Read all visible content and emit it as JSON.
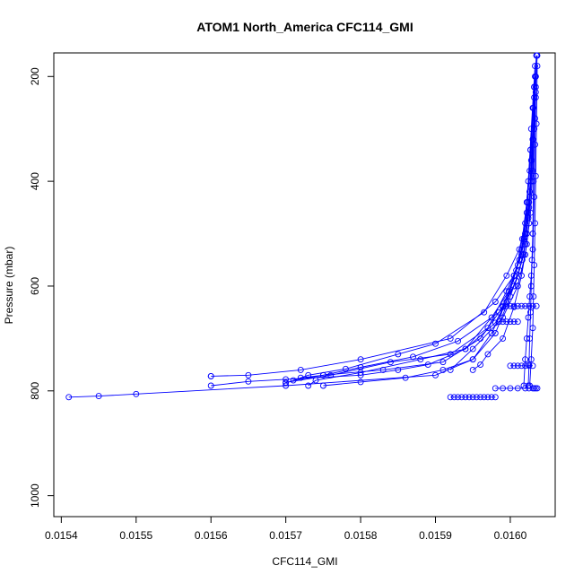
{
  "chart_data": {
    "type": "line",
    "title": "ATOM1 North_America CFC114_GMI",
    "xlabel": "CFC114_GMI",
    "ylabel": "Pressure (mbar)",
    "xlim": [
      0.01539,
      0.01606
    ],
    "ylim": [
      1040,
      155
    ],
    "y_reversed": true,
    "x_ticks": [
      0.0154,
      0.0155,
      0.0156,
      0.0157,
      0.0158,
      0.0159,
      0.016
    ],
    "x_tick_labels": [
      "0.0154",
      "0.0155",
      "0.0156",
      "0.0157",
      "0.0158",
      "0.0159",
      "0.0160"
    ],
    "y_ticks": [
      200,
      400,
      600,
      800,
      1000
    ],
    "y_tick_labels": [
      "200",
      "400",
      "600",
      "800",
      "1000"
    ],
    "grid": false,
    "legend": "none",
    "marker": "open-circle",
    "color": "#0000ff",
    "series": [
      {
        "x": [
          0.016035,
          0.01603,
          0.016028,
          0.016025,
          0.01602,
          0.016015,
          0.016005,
          0.01598,
          0.01592,
          0.0158,
          0.01572,
          0.01565,
          0.0156,
          0.0156
        ],
        "y": [
          160,
          260,
          360,
          440,
          500,
          540,
          580,
          630,
          700,
          740,
          760,
          770,
          772,
          772
        ]
      },
      {
        "x": [
          0.016033,
          0.016028,
          0.016024,
          0.01602,
          0.016012,
          0.015995,
          0.015965,
          0.0159,
          0.01585,
          0.01578,
          0.01573,
          0.0157
        ],
        "y": [
          180,
          300,
          400,
          480,
          530,
          580,
          650,
          710,
          730,
          758,
          770,
          785
        ]
      },
      {
        "x": [
          0.016034,
          0.01603,
          0.016026,
          0.016022,
          0.016016,
          0.016005,
          0.01598,
          0.01594,
          0.01588,
          0.0158,
          0.01574,
          0.01573
        ],
        "y": [
          200,
          320,
          420,
          500,
          550,
          600,
          670,
          720,
          740,
          765,
          780,
          790
        ]
      },
      {
        "x": [
          0.016032,
          0.016027,
          0.016023,
          0.016018,
          0.01601,
          0.015995,
          0.01597,
          0.01592,
          0.01584,
          0.01576,
          0.0157
        ],
        "y": [
          220,
          340,
          440,
          510,
          560,
          610,
          680,
          730,
          745,
          770,
          784
        ]
      },
      {
        "x": [
          0.016034,
          0.016029,
          0.016025,
          0.01602,
          0.016012,
          0.016,
          0.01598,
          0.01595,
          0.01591,
          0.01586,
          0.0158,
          0.01575
        ],
        "y": [
          240,
          360,
          450,
          520,
          570,
          620,
          690,
          740,
          760,
          775,
          783,
          790
        ]
      },
      {
        "x": [
          0.016031,
          0.016026,
          0.016022,
          0.016015,
          0.016005,
          0.01599,
          0.01596,
          0.01591,
          0.01583,
          0.01575,
          0.01572
        ],
        "y": [
          260,
          380,
          460,
          530,
          580,
          640,
          700,
          745,
          760,
          770,
          775
        ]
      },
      {
        "x": [
          0.016033,
          0.016028,
          0.016024,
          0.016018,
          0.016008,
          0.015985,
          0.01593,
          0.01587,
          0.0158,
          0.01575,
          0.01571
        ],
        "y": [
          280,
          400,
          470,
          540,
          590,
          650,
          705,
          735,
          755,
          770,
          780
        ]
      },
      {
        "x": [
          0.016034,
          0.01603,
          0.016026,
          0.01602,
          0.016012,
          0.015998,
          0.015975,
          0.01594,
          0.01589,
          0.01585,
          0.0158,
          0.0157,
          0.01565,
          0.0156
        ],
        "y": [
          200,
          320,
          420,
          500,
          550,
          610,
          660,
          720,
          750,
          760,
          770,
          778,
          782,
          790
        ]
      },
      {
        "x": [
          0.016032,
          0.016027,
          0.016022,
          0.016016,
          0.016008,
          0.015995,
          0.015975,
          0.01595,
          0.0159,
          0.0157,
          0.0155,
          0.01545,
          0.01541
        ],
        "y": [
          220,
          340,
          440,
          510,
          570,
          630,
          690,
          740,
          770,
          790,
          806,
          810,
          812
        ]
      },
      {
        "x": [
          0.016035,
          0.016032,
          0.01603,
          0.016028,
          0.016025,
          0.01602,
          0.01601,
          0.01599,
          0.01595,
          0.01592
        ],
        "y": [
          160,
          240,
          320,
          400,
          480,
          540,
          600,
          660,
          720,
          760
        ]
      },
      {
        "x": [
          0.016036,
          0.016034,
          0.016032,
          0.01603,
          0.016027,
          0.016022,
          0.016015,
          0.016005,
          0.01599,
          0.01597,
          0.01596,
          0.01595
        ],
        "y": [
          160,
          220,
          300,
          380,
          460,
          520,
          580,
          640,
          700,
          730,
          750,
          760
        ]
      },
      {
        "x": [
          0.016033,
          0.016032,
          0.016031,
          0.01603,
          0.016029,
          0.016028,
          0.016027,
          0.016026,
          0.016025,
          0.016024
        ],
        "y": [
          200,
          300,
          400,
          500,
          550,
          600,
          650,
          700,
          750,
          790
        ]
      },
      {
        "x": [
          0.016034,
          0.016033,
          0.016032,
          0.01603,
          0.016028,
          0.016026,
          0.016024,
          0.016022,
          0.01602,
          0.016018
        ],
        "y": [
          230,
          330,
          430,
          530,
          580,
          620,
          660,
          700,
          740,
          790
        ]
      },
      {
        "x": [
          0.016036,
          0.016035,
          0.016034,
          0.016033,
          0.016032,
          0.016031,
          0.01603,
          0.016028,
          0.016026
        ],
        "y": [
          180,
          290,
          390,
          480,
          560,
          620,
          680,
          740,
          790
        ]
      },
      {
        "x": [
          0.01598,
          0.01599,
          0.016,
          0.01601,
          0.01602,
          0.016025,
          0.01603,
          0.016032,
          0.016034,
          0.016036
        ],
        "y": [
          795,
          795,
          795,
          795,
          795,
          795,
          795,
          795,
          795,
          795
        ]
      },
      {
        "x": [
          0.01592,
          0.015925,
          0.01593,
          0.015935,
          0.01594,
          0.015945,
          0.01595,
          0.015955,
          0.01596,
          0.015965,
          0.01597,
          0.015975,
          0.01598
        ],
        "y": [
          812,
          812,
          812,
          812,
          812,
          812,
          812,
          812,
          812,
          812,
          812,
          812,
          812
        ]
      },
      {
        "x": [
          0.01599,
          0.015995,
          0.016,
          0.016005,
          0.01601,
          0.016015,
          0.01602,
          0.016025,
          0.01603,
          0.016035
        ],
        "y": [
          638,
          638,
          638,
          638,
          638,
          638,
          638,
          638,
          638,
          638
        ]
      },
      {
        "x": [
          0.015985,
          0.01599,
          0.015995,
          0.016,
          0.016005,
          0.01601
        ],
        "y": [
          668,
          668,
          668,
          668,
          668,
          668
        ]
      },
      {
        "x": [
          0.016,
          0.016005,
          0.01601,
          0.016015,
          0.01602,
          0.016025,
          0.01603
        ],
        "y": [
          752,
          752,
          752,
          752,
          752,
          752,
          752
        ]
      }
    ]
  }
}
